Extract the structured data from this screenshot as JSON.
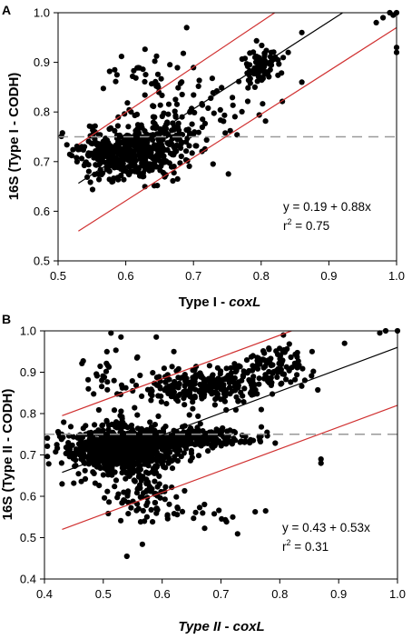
{
  "chart_data": [
    {
      "type": "scatter",
      "panel": "A",
      "xlabel": "Type I - ",
      "xlabel_italic": "coxL",
      "ylabel": "16S (Type I - CODH)",
      "xlim": [
        0.5,
        1.0
      ],
      "ylim": [
        0.5,
        1.0
      ],
      "xticks": [
        "0.5",
        "0.6",
        "0.7",
        "0.8",
        "0.9",
        "1.0"
      ],
      "yticks": [
        "0.5",
        "0.6",
        "0.7",
        "0.8",
        "0.9",
        "1.0"
      ],
      "annotation_eq": "y = 0.19 + 0.88x",
      "annotation_r2_pre": "r",
      "annotation_r2_sup": "2",
      "annotation_r2_post": " = 0.75",
      "threshold_y": 0.75,
      "fit": {
        "intercept": 0.19,
        "slope": 0.88,
        "x_range": [
          0.53,
          0.92
        ]
      },
      "upper_bound": {
        "x": [
          0.53,
          0.82
        ],
        "y": [
          0.735,
          1.0
        ]
      },
      "lower_bound": {
        "x": [
          0.53,
          1.0
        ],
        "y": [
          0.56,
          0.97
        ]
      },
      "colors": {
        "points": "#000000",
        "fit": "#000000",
        "bounds": "#d03030",
        "threshold": "#999999"
      },
      "clusters": [
        {
          "cx": 0.6,
          "cy": 0.715,
          "sx": 0.035,
          "sy": 0.025,
          "n": 420
        },
        {
          "cx": 0.66,
          "cy": 0.755,
          "sx": 0.03,
          "sy": 0.03,
          "n": 120
        },
        {
          "cx": 0.63,
          "cy": 0.87,
          "sx": 0.035,
          "sy": 0.03,
          "n": 40
        },
        {
          "cx": 0.8,
          "cy": 0.895,
          "sx": 0.015,
          "sy": 0.02,
          "n": 70
        },
        {
          "cx": 0.73,
          "cy": 0.8,
          "sx": 0.04,
          "sy": 0.04,
          "n": 45
        }
      ],
      "points": [
        [
          0.99,
          1.0
        ],
        [
          1.0,
          1.0
        ],
        [
          0.995,
          0.995
        ],
        [
          0.98,
          0.99
        ],
        [
          1.0,
          0.93
        ],
        [
          1.0,
          0.92
        ],
        [
          0.97,
          0.98
        ],
        [
          0.55,
          0.77
        ],
        [
          0.535,
          0.73
        ],
        [
          0.86,
          0.96
        ],
        [
          0.84,
          0.92
        ],
        [
          0.69,
          0.97
        ],
        [
          0.86,
          0.86
        ]
      ]
    },
    {
      "type": "scatter",
      "panel": "B",
      "xlabel_italic_first": "Type II",
      "xlabel": " - ",
      "xlabel_italic": "coxL",
      "ylabel": "16S (Type II - CODH)",
      "xlim": [
        0.4,
        1.0
      ],
      "ylim": [
        0.4,
        1.0
      ],
      "xticks": [
        "0.4",
        "0.5",
        "0.6",
        "0.7",
        "0.8",
        "0.9",
        "1.0"
      ],
      "yticks": [
        "0.4",
        "0.5",
        "0.6",
        "0.7",
        "0.8",
        "0.9",
        "1.0"
      ],
      "annotation_eq": "y = 0.43 + 0.53x",
      "annotation_r2_pre": "r",
      "annotation_r2_sup": "2",
      "annotation_r2_post": " = 0.31",
      "threshold_y": 0.75,
      "fit": {
        "intercept": 0.43,
        "slope": 0.53,
        "x_range": [
          0.43,
          1.0
        ]
      },
      "upper_bound": {
        "x": [
          0.43,
          0.82
        ],
        "y": [
          0.795,
          1.0
        ]
      },
      "lower_bound": {
        "x": [
          0.43,
          1.0
        ],
        "y": [
          0.52,
          0.82
        ]
      },
      "colors": {
        "points": "#000000",
        "fit": "#000000",
        "bounds": "#d03030",
        "threshold": "#999999"
      },
      "clusters": [
        {
          "cx": 0.53,
          "cy": 0.715,
          "sx": 0.045,
          "sy": 0.025,
          "n": 900
        },
        {
          "cx": 0.64,
          "cy": 0.74,
          "sx": 0.06,
          "sy": 0.012,
          "n": 300
        },
        {
          "cx": 0.68,
          "cy": 0.865,
          "sx": 0.05,
          "sy": 0.025,
          "n": 260
        },
        {
          "cx": 0.79,
          "cy": 0.92,
          "sx": 0.03,
          "sy": 0.025,
          "n": 90
        },
        {
          "cx": 0.56,
          "cy": 0.62,
          "sx": 0.03,
          "sy": 0.05,
          "n": 110
        },
        {
          "cx": 0.52,
          "cy": 0.88,
          "sx": 0.025,
          "sy": 0.05,
          "n": 40
        },
        {
          "cx": 0.66,
          "cy": 0.56,
          "sx": 0.05,
          "sy": 0.02,
          "n": 25
        }
      ],
      "points": [
        [
          0.54,
          0.455
        ],
        [
          0.98,
          1.0
        ],
        [
          1.0,
          1.0
        ],
        [
          0.97,
          0.995
        ],
        [
          0.87,
          0.69
        ],
        [
          0.87,
          0.68
        ],
        [
          0.53,
          0.985
        ],
        [
          0.59,
          0.985
        ],
        [
          0.62,
          0.95
        ],
        [
          0.91,
          0.97
        ],
        [
          0.72,
          0.55
        ],
        [
          0.43,
          0.63
        ]
      ]
    }
  ]
}
